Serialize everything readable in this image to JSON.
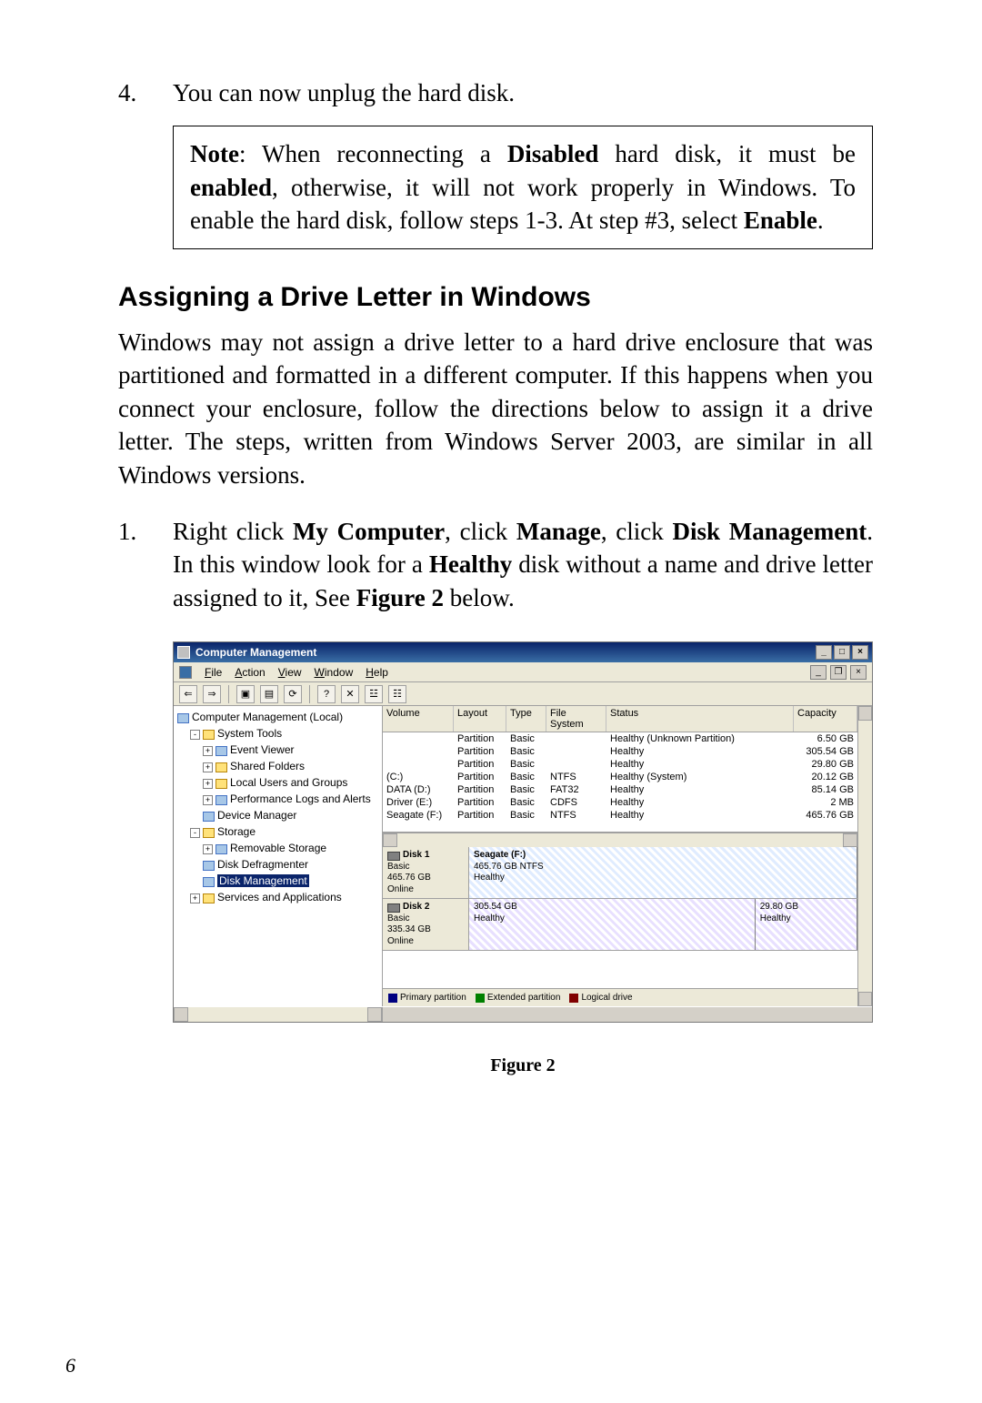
{
  "page_number": "6",
  "step4_number": "4.",
  "step4_text": "You can now unplug the hard disk.",
  "note_intro_bold": "Note",
  "note_text_1": ": When reconnecting a ",
  "note_bold_disabled": "Disabled",
  "note_text_2": " hard disk, it must be ",
  "note_bold_enabled": "enabled",
  "note_text_3": ", otherwise, it will not work properly in Windows.  To enable the hard disk, follow steps 1-3.  At step #3, select ",
  "note_bold_enable2": "Enable",
  "note_text_4": ".",
  "section_heading": "Assigning a  Drive Letter in Windows",
  "intro_paragraph": "Windows may not assign a drive letter to a hard drive enclosure that was partitioned and formatted in a different computer.  If this happens when you connect your enclosure, follow the directions below to assign it a drive letter.  The steps, written from Windows Server 2003, are similar in all Windows versions.",
  "step1_number": "1.",
  "step1_pre": "Right click ",
  "step1_b1": "My Computer",
  "step1_mid1": ", click ",
  "step1_b2": "Manage",
  "step1_mid2": ", click ",
  "step1_b3": "Disk Management",
  "step1_mid3": ".  In this window look for a ",
  "step1_b4": "Healthy",
  "step1_mid4": " disk without a name and drive letter assigned to it, See ",
  "step1_b5": "Figure 2",
  "step1_end": " below.",
  "figure_label": "Figure 2",
  "window": {
    "title": "Computer Management",
    "menus": [
      "File",
      "Action",
      "View",
      "Window",
      "Help"
    ],
    "tree_root": "Computer Management (Local)",
    "tree": {
      "system_tools": "System Tools",
      "event_viewer": "Event Viewer",
      "shared_folders": "Shared Folders",
      "local_users": "Local Users and Groups",
      "perf_logs": "Performance Logs and Alerts",
      "device_manager": "Device Manager",
      "storage": "Storage",
      "removable": "Removable Storage",
      "defrag": "Disk Defragmenter",
      "disk_mgmt": "Disk Management",
      "services": "Services and Applications"
    },
    "headers": {
      "volume": "Volume",
      "layout": "Layout",
      "type": "Type",
      "fs": "File System",
      "status": "Status",
      "capacity": "Capacity"
    },
    "volumes": [
      {
        "vol": "",
        "layout": "Partition",
        "type": "Basic",
        "fs": "",
        "status": "Healthy (Unknown Partition)",
        "cap": "6.50 GB"
      },
      {
        "vol": "",
        "layout": "Partition",
        "type": "Basic",
        "fs": "",
        "status": "Healthy",
        "cap": "305.54 GB"
      },
      {
        "vol": "",
        "layout": "Partition",
        "type": "Basic",
        "fs": "",
        "status": "Healthy",
        "cap": "29.80 GB"
      },
      {
        "vol": "(C:)",
        "layout": "Partition",
        "type": "Basic",
        "fs": "NTFS",
        "status": "Healthy (System)",
        "cap": "20.12 GB"
      },
      {
        "vol": "DATA (D:)",
        "layout": "Partition",
        "type": "Basic",
        "fs": "FAT32",
        "status": "Healthy",
        "cap": "85.14 GB"
      },
      {
        "vol": "Driver (E:)",
        "layout": "Partition",
        "type": "Basic",
        "fs": "CDFS",
        "status": "Healthy",
        "cap": "2 MB"
      },
      {
        "vol": "Seagate (F:)",
        "layout": "Partition",
        "type": "Basic",
        "fs": "NTFS",
        "status": "Healthy",
        "cap": "465.76 GB"
      }
    ],
    "disks": [
      {
        "name": "Disk 1",
        "kind": "Basic",
        "size": "465.76 GB",
        "state": "Online",
        "parts": [
          {
            "name": "Seagate (F:)",
            "size": "465.76 GB NTFS",
            "status": "Healthy",
            "flex": 1
          }
        ]
      },
      {
        "name": "Disk 2",
        "kind": "Basic",
        "size": "335.34 GB",
        "state": "Online",
        "parts": [
          {
            "name": "",
            "size": "305.54 GB",
            "status": "Healthy",
            "flex": 3
          },
          {
            "name": "",
            "size": "29.80 GB",
            "status": "Healthy",
            "flex": 1
          }
        ]
      }
    ],
    "legend": {
      "primary": "Primary partition",
      "extended": "Extended partition",
      "logical": "Logical drive"
    }
  }
}
